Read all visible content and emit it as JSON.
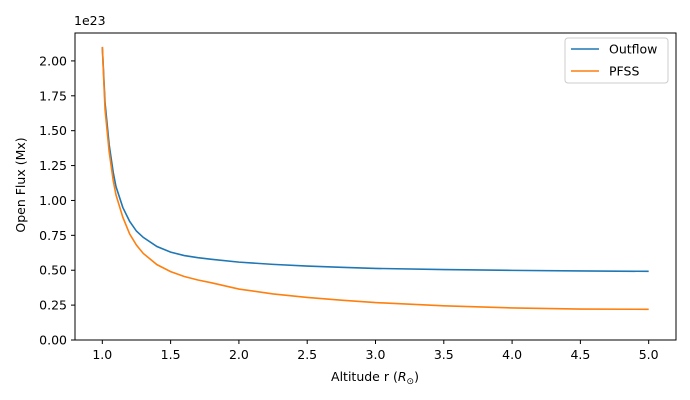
{
  "chart_data": {
    "type": "line",
    "title": "",
    "xlabel": "Altitude r (",
    "xlabel_symbol": "R",
    "xlabel_sub": "⊙",
    "xlabel_close": ")",
    "ylabel": "Open Flux (Mx)",
    "y_offset_text": "1e23",
    "xlim": [
      0.8,
      5.2
    ],
    "ylim": [
      0.0,
      2.2
    ],
    "xticks": [
      1.0,
      1.5,
      2.0,
      2.5,
      3.0,
      3.5,
      4.0,
      4.5,
      5.0
    ],
    "xtick_labels": [
      "1.0",
      "1.5",
      "2.0",
      "2.5",
      "3.0",
      "3.5",
      "4.0",
      "4.5",
      "5.0"
    ],
    "yticks": [
      0.0,
      0.25,
      0.5,
      0.75,
      1.0,
      1.25,
      1.5,
      1.75,
      2.0
    ],
    "ytick_labels": [
      "0.00",
      "0.25",
      "0.50",
      "0.75",
      "1.00",
      "1.25",
      "1.50",
      "1.75",
      "2.00"
    ],
    "grid": false,
    "legend_position": "top-right",
    "x": [
      1.0,
      1.02,
      1.05,
      1.08,
      1.1,
      1.15,
      1.2,
      1.25,
      1.3,
      1.4,
      1.5,
      1.6,
      1.7,
      1.8,
      2.0,
      2.25,
      2.5,
      2.75,
      3.0,
      3.5,
      4.0,
      4.5,
      5.0
    ],
    "series": [
      {
        "name": "Outflow",
        "color": "#1f77b4",
        "values": [
          2.1,
          1.7,
          1.4,
          1.2,
          1.1,
          0.95,
          0.85,
          0.78,
          0.735,
          0.67,
          0.63,
          0.605,
          0.59,
          0.578,
          0.558,
          0.542,
          0.53,
          0.521,
          0.513,
          0.505,
          0.499,
          0.495,
          0.492
        ]
      },
      {
        "name": "PFSS",
        "color": "#ff7f0e",
        "values": [
          2.1,
          1.65,
          1.35,
          1.14,
          1.04,
          0.88,
          0.76,
          0.68,
          0.62,
          0.54,
          0.49,
          0.455,
          0.43,
          0.41,
          0.365,
          0.33,
          0.305,
          0.285,
          0.268,
          0.245,
          0.23,
          0.222,
          0.22
        ]
      }
    ]
  }
}
